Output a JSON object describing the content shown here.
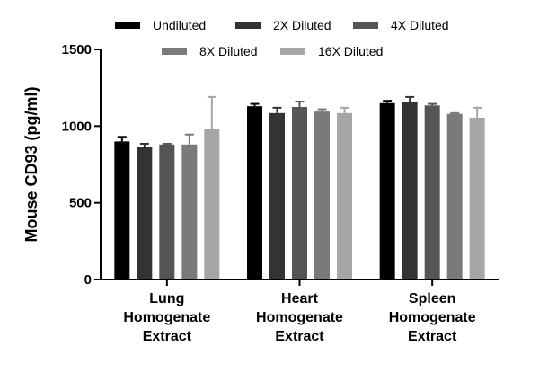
{
  "chart_data": {
    "type": "bar",
    "title": "",
    "xlabel": "",
    "ylabel": "Mouse CD93 (pg/ml)",
    "ylim": [
      0,
      1500
    ],
    "yticks": [
      "0",
      "500",
      "1000",
      "1500"
    ],
    "categories": [
      [
        "Lung",
        "Homogenate",
        "Extract"
      ],
      [
        "Heart",
        "Homogenate",
        "Extract"
      ],
      [
        "Spleen",
        "Homogenate",
        "Extract"
      ]
    ],
    "legend_position": "top",
    "series": [
      {
        "name": "Undiluted",
        "color": "#000000",
        "values": [
          900,
          1130,
          1150
        ],
        "errors": [
          30,
          15,
          15
        ]
      },
      {
        "name": "2X Diluted",
        "color": "#333333",
        "values": [
          865,
          1085,
          1160
        ],
        "errors": [
          20,
          35,
          30
        ]
      },
      {
        "name": "4X Diluted",
        "color": "#555555",
        "values": [
          880,
          1125,
          1135
        ],
        "errors": [
          5,
          35,
          10
        ]
      },
      {
        "name": "8X Diluted",
        "color": "#7a7a7a",
        "values": [
          880,
          1095,
          1080
        ],
        "errors": [
          65,
          15,
          5
        ]
      },
      {
        "name": "16X Diluted",
        "color": "#a6a6a6",
        "values": [
          980,
          1085,
          1055
        ],
        "errors": [
          210,
          35,
          65
        ]
      }
    ]
  }
}
